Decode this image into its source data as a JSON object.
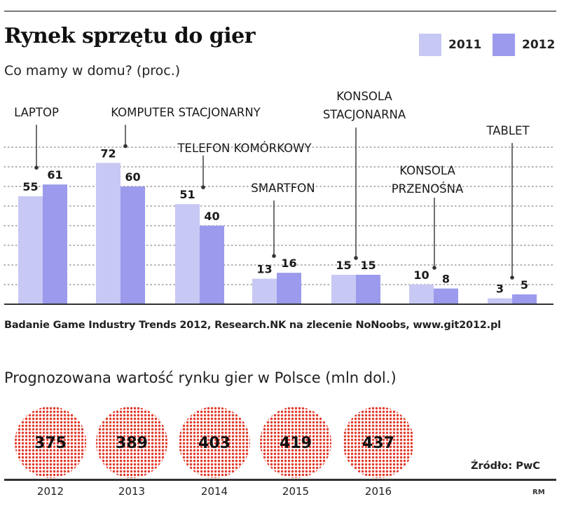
{
  "title": "Rynek sprzętu do gier",
  "legend": [
    {
      "label": "2011",
      "color": "#c8c8f4"
    },
    {
      "label": "2012",
      "color": "#9b9aec"
    }
  ],
  "chart_data": [
    {
      "type": "bar",
      "title": "Co mamy w domu? (proc.)",
      "categories": [
        "LAPTOP",
        "KOMPUTER STACJONARNY",
        "TELEFON KOMÓRKOWY",
        "SMARTFON",
        "KONSOLA STACJONARNA",
        "KONSOLA PRZENOŚNA",
        "TABLET"
      ],
      "category_lines": [
        [
          "LAPTOP"
        ],
        [
          "KOMPUTER STACJONARNY"
        ],
        [
          "TELEFON KOMÓRKOWY"
        ],
        [
          "SMARTFON"
        ],
        [
          "KONSOLA",
          "STACJONARNA"
        ],
        [
          "KONSOLA",
          "PRZENOŚNA"
        ],
        [
          "TABLET"
        ]
      ],
      "series": [
        {
          "name": "2011",
          "values": [
            55,
            72,
            51,
            13,
            15,
            10,
            3
          ]
        },
        {
          "name": "2012",
          "values": [
            61,
            60,
            40,
            16,
            15,
            8,
            5
          ]
        }
      ],
      "ylim": [
        0,
        80
      ],
      "grid": true,
      "legend": "top-right",
      "source": "Badanie Game Industry Trends 2012, Research.NK na zlecenie NoNoobs, www.git2012.pl"
    },
    {
      "type": "bubble",
      "title": "Prognozowana wartość rynku gier w Polsce (mln dol.)",
      "categories": [
        "2012",
        "2013",
        "2014",
        "2015",
        "2016"
      ],
      "values": [
        375,
        389,
        403,
        419,
        437
      ],
      "color": "#e23a2c",
      "source": "Źródło: PwC"
    }
  ],
  "credit": "RM"
}
